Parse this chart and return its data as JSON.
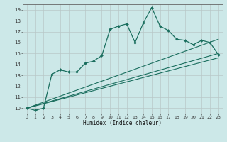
{
  "title": "",
  "xlabel": "Humidex (Indice chaleur)",
  "ylabel": "",
  "bg_color": "#cce8e8",
  "grid_color": "#b8c8c8",
  "line_color": "#1a6e5e",
  "xlim": [
    -0.5,
    23.5
  ],
  "ylim": [
    9.5,
    19.5
  ],
  "xticks": [
    0,
    1,
    2,
    3,
    4,
    5,
    6,
    7,
    8,
    9,
    10,
    11,
    12,
    13,
    14,
    15,
    16,
    17,
    18,
    19,
    20,
    21,
    22,
    23
  ],
  "yticks": [
    10,
    11,
    12,
    13,
    14,
    15,
    16,
    17,
    18,
    19
  ],
  "curve1_x": [
    0,
    1,
    2,
    3,
    4,
    5,
    6,
    7,
    8,
    9,
    10,
    11,
    12,
    13,
    14,
    15,
    16,
    17,
    18,
    19,
    20,
    21,
    22,
    23
  ],
  "curve1_y": [
    10.0,
    9.8,
    10.0,
    13.1,
    13.5,
    13.3,
    13.3,
    14.1,
    14.3,
    14.8,
    17.2,
    17.5,
    17.7,
    16.0,
    17.8,
    19.2,
    17.5,
    17.1,
    16.3,
    16.2,
    15.8,
    16.2,
    16.0,
    14.9
  ],
  "curve2_x": [
    0,
    23
  ],
  "curve2_y": [
    10.0,
    16.3
  ],
  "curve3_x": [
    0,
    23
  ],
  "curve3_y": [
    10.0,
    15.0
  ],
  "curve4_x": [
    0,
    23
  ],
  "curve4_y": [
    10.0,
    14.6
  ]
}
